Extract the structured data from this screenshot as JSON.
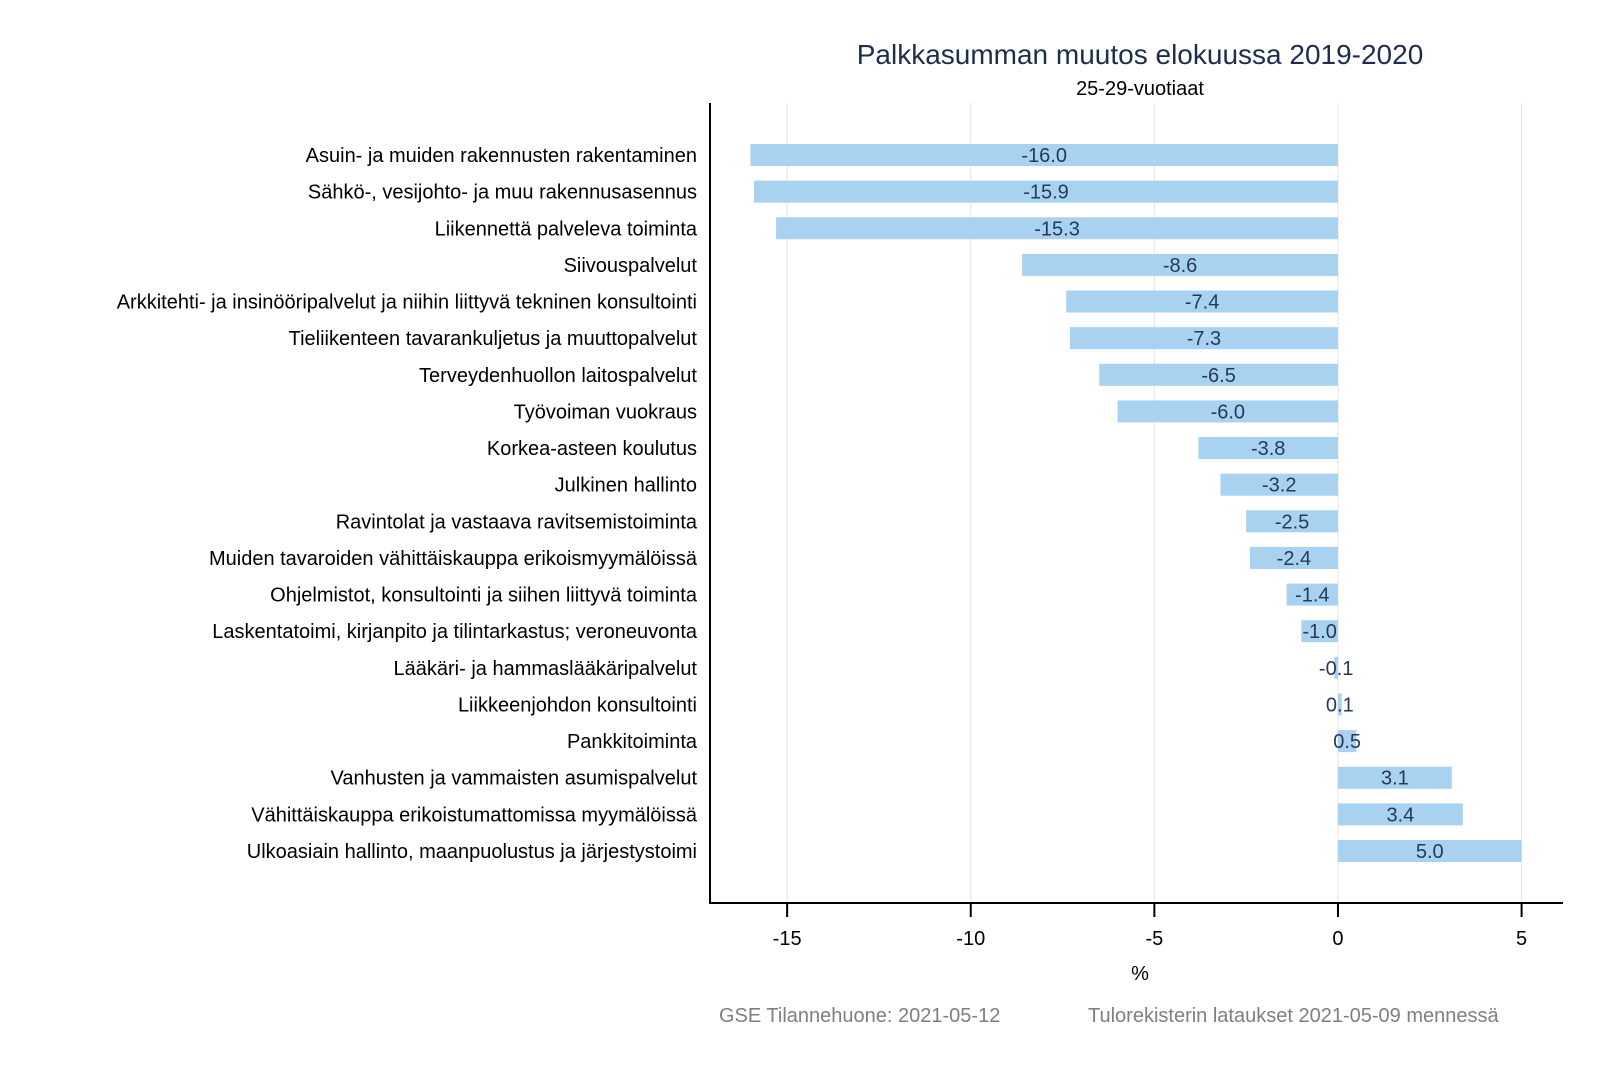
{
  "chart_data": {
    "type": "bar",
    "orientation": "horizontal",
    "title": "Palkkasumman muutos elokuussa 2019-2020",
    "subtitle": "25-29-vuotiaat",
    "xlabel": "%",
    "ylabel": "",
    "xlim": [
      -17.1,
      6.1
    ],
    "xticks": [
      -15,
      -10,
      -5,
      0,
      5
    ],
    "xtick_labels": [
      "-15",
      "-10",
      "-5",
      "0",
      "5"
    ],
    "grid": "vertical",
    "bar_color": "#a8d2f0",
    "categories": [
      "Asuin- ja muiden rakennusten rakentaminen",
      "Sähkö-, vesijohto- ja muu rakennusasennus",
      "Liikennettä palveleva toiminta",
      "Siivouspalvelut",
      "Arkkitehti- ja insinööripalvelut ja niihin liittyvä tekninen konsultointi",
      "Tieliikenteen tavarankuljetus ja muuttopalvelut",
      "Terveydenhuollon laitospalvelut",
      "Työvoiman vuokraus",
      "Korkea-asteen koulutus",
      "Julkinen hallinto",
      "Ravintolat ja vastaava ravitsemistoiminta",
      "Muiden tavaroiden vähittäiskauppa erikoismyymälöissä",
      "Ohjelmistot, konsultointi ja siihen liittyvä toiminta",
      "Laskentatoimi, kirjanpito ja tilintarkastus; veroneuvonta",
      "Lääkäri- ja hammaslääkäripalvelut",
      "Liikkeenjohdon konsultointi",
      "Pankkitoiminta",
      "Vanhusten ja vammaisten asumispalvelut",
      "Vähittäiskauppa erikoistumattomissa myymälöissä",
      "Ulkoasiain hallinto, maanpuolustus ja järjestystoimi"
    ],
    "values": [
      -16.0,
      -15.9,
      -15.3,
      -8.6,
      -7.4,
      -7.3,
      -6.5,
      -6.0,
      -3.8,
      -3.2,
      -2.5,
      -2.4,
      -1.4,
      -1.0,
      -0.1,
      0.1,
      0.5,
      3.1,
      3.4,
      5.0
    ],
    "value_labels": [
      "-16.0",
      "-15.9",
      "-15.3",
      "-8.6",
      "-7.4",
      "-7.3",
      "-6.5",
      "-6.0",
      "-3.8",
      "-3.2",
      "-2.5",
      "-2.4",
      "-1.4",
      "-1.0",
      "-0.1",
      "0.1",
      "0.5",
      "3.1",
      "3.4",
      "5.0"
    ]
  },
  "footer": {
    "source": "GSE Tilannehuone: 2021-05-12",
    "note": "Tulorekisterin lataukset 2021-05-09 mennessä"
  }
}
